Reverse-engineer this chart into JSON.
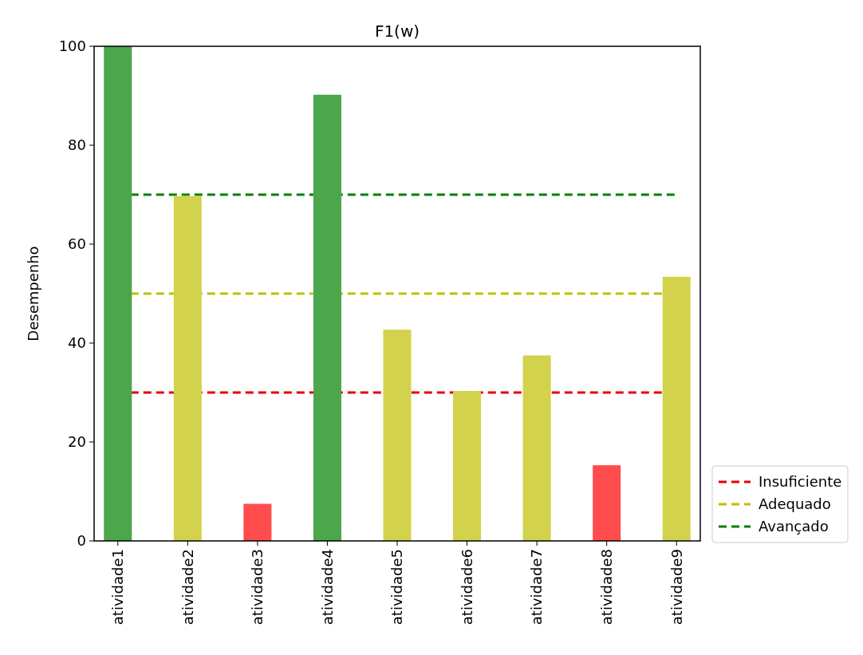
{
  "chart_data": {
    "type": "bar",
    "title": "F1(w)",
    "ylabel": "Desempenho",
    "categories": [
      "atividade1",
      "atividade2",
      "atividade3",
      "atividade4",
      "atividade5",
      "atividade6",
      "atividade7",
      "atividade8",
      "atividade9"
    ],
    "values": [
      100,
      69.7,
      7.5,
      90.2,
      42.7,
      30.3,
      37.5,
      15.3,
      53.4
    ],
    "colors": [
      "#4ca64c",
      "#d2d24c",
      "#ff4c4c",
      "#4ca64c",
      "#d2d24c",
      "#d2d24c",
      "#d2d24c",
      "#ff4c4c",
      "#d2d24c"
    ],
    "ylim": [
      0,
      100
    ],
    "yticks": [
      0,
      20,
      40,
      60,
      80,
      100
    ],
    "ref_lines": [
      {
        "axis": "y",
        "value": 30,
        "label": "Insuficiente",
        "color": "#e50000",
        "line_style": "dashed"
      },
      {
        "axis": "y",
        "value": 50,
        "label": "Adequado",
        "color": "#bfbf00",
        "line_style": "dashed"
      },
      {
        "axis": "y",
        "value": 70,
        "label": "Avançado",
        "color": "#008000",
        "line_style": "dashed"
      }
    ],
    "legend": "bottom right",
    "grid": false
  }
}
